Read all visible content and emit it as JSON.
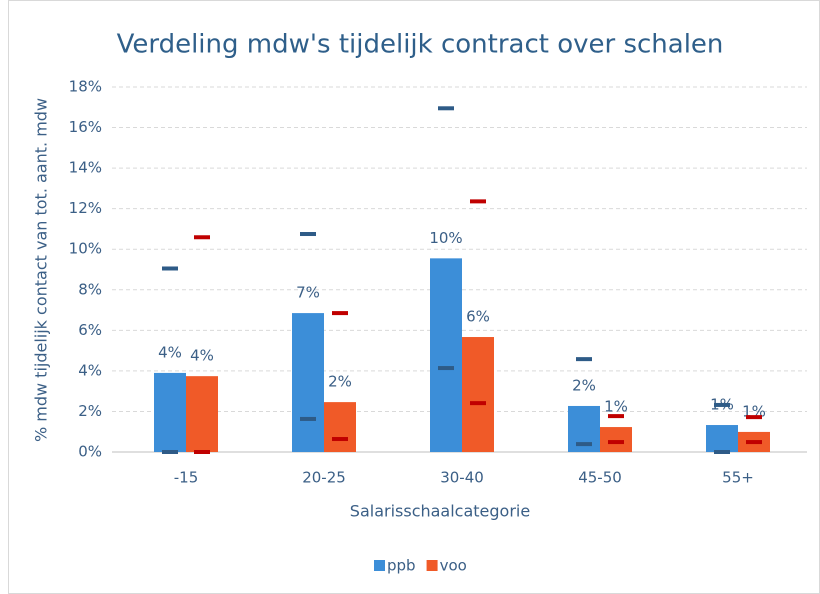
{
  "chart_data": {
    "type": "bar",
    "title": "Verdeling mdw's tijdelijk contract over schalen",
    "x_label": "Salarisschaalcategorie",
    "y_label": "% mdw tijdelijk contact van tot. aant. mdw",
    "categories": [
      "-15",
      "20-25",
      "30-40",
      "45-50",
      "55+"
    ],
    "series": [
      {
        "name": "ppb",
        "color": "#3c8ed8",
        "marker_color": "#2e5b87",
        "values": [
          3.9,
          6.85,
          9.55,
          2.27,
          1.33
        ],
        "value_labels": [
          "4%",
          "7%",
          "10%",
          "2%",
          "1%"
        ],
        "high": [
          9.05,
          10.75,
          16.95,
          4.58,
          2.32
        ],
        "low": [
          0,
          1.63,
          4.14,
          0.39,
          0
        ]
      },
      {
        "name": "voo",
        "color": "#f05a28",
        "marker_color": "#c00000",
        "values": [
          3.74,
          2.46,
          5.67,
          1.23,
          0.99
        ],
        "value_labels": [
          "4%",
          "2%",
          "6%",
          "1%",
          "1%"
        ],
        "high": [
          10.59,
          6.85,
          12.36,
          1.77,
          1.72
        ],
        "low": [
          0,
          0.64,
          2.41,
          0.49,
          0.49
        ]
      }
    ],
    "ylim": [
      0,
      18
    ],
    "yticks": [
      {
        "value": 0,
        "label": "0%"
      },
      {
        "value": 2,
        "label": "2%"
      },
      {
        "value": 4,
        "label": "4%"
      },
      {
        "value": 6,
        "label": "6%"
      },
      {
        "value": 8,
        "label": "8%"
      },
      {
        "value": 10,
        "label": "10%"
      },
      {
        "value": 12,
        "label": "12%"
      },
      {
        "value": 14,
        "label": "14%"
      },
      {
        "value": 16,
        "label": "16%"
      },
      {
        "value": 18,
        "label": "18%"
      }
    ],
    "grid": true,
    "legend": "bottom"
  }
}
